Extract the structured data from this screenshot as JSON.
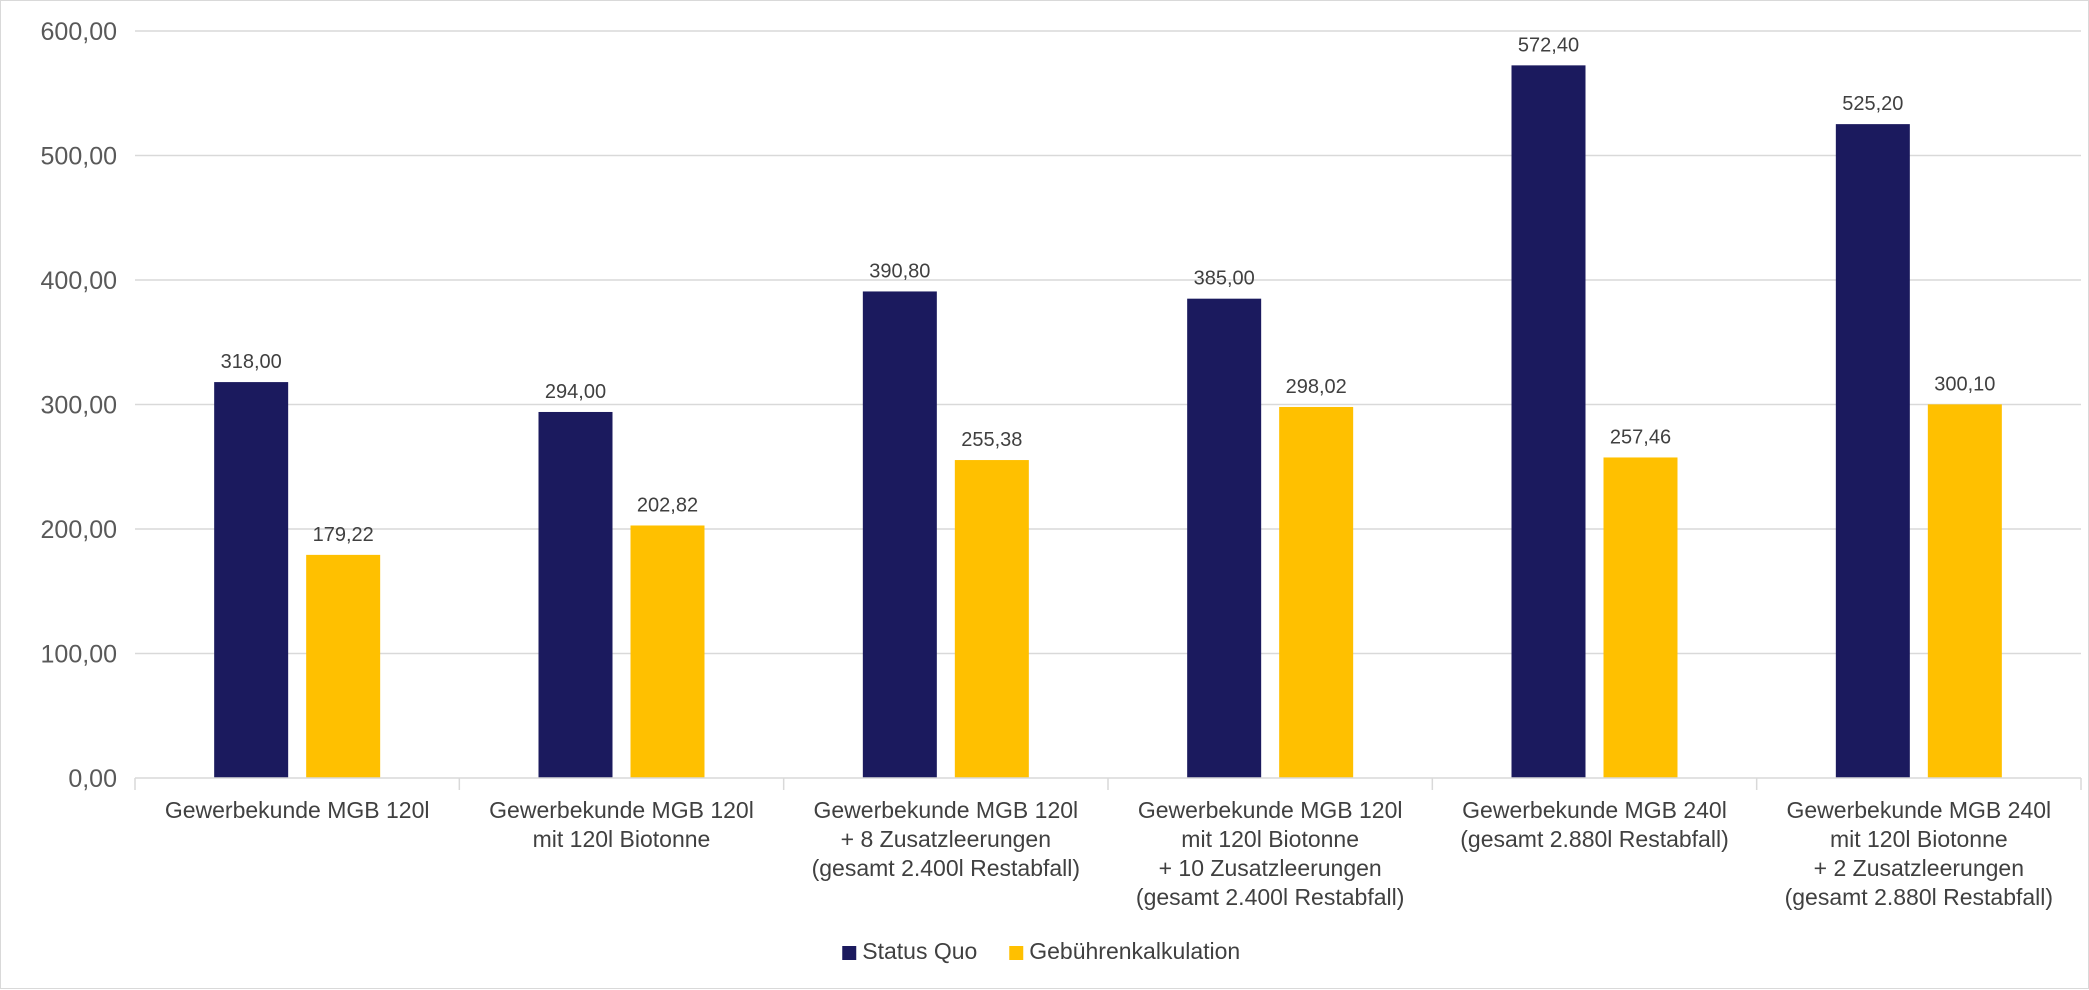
{
  "chart_data": {
    "type": "bar",
    "title": "",
    "xlabel": "",
    "ylabel": "",
    "ylim": [
      0,
      600
    ],
    "yticks": [
      "0,00",
      "100,00",
      "200,00",
      "300,00",
      "400,00",
      "500,00",
      "600,00"
    ],
    "grid": true,
    "legend_position": "bottom",
    "categories": [
      [
        "Gewerbekunde MGB 120l"
      ],
      [
        "Gewerbekunde MGB 120l",
        "mit 120l Biotonne"
      ],
      [
        "Gewerbekunde MGB 120l",
        "+ 8 Zusatzleerungen",
        "(gesamt 2.400l Restabfall)"
      ],
      [
        "Gewerbekunde MGB 120l",
        "mit 120l Biotonne",
        "+ 10 Zusatzleerungen",
        "(gesamt 2.400l Restabfall)"
      ],
      [
        "Gewerbekunde MGB 240l",
        "(gesamt 2.880l Restabfall)"
      ],
      [
        "Gewerbekunde MGB 240l",
        "mit 120l Biotonne",
        "+ 2 Zusatzleerungen",
        "(gesamt 2.880l Restabfall)"
      ]
    ],
    "series": [
      {
        "name": "Status Quo",
        "color": "#1b1a5e",
        "values": [
          318.0,
          294.0,
          390.8,
          385.0,
          572.4,
          525.2
        ],
        "labels": [
          "318,00",
          "294,00",
          "390,80",
          "385,00",
          "572,40",
          "525,20"
        ]
      },
      {
        "name": "Gebührenkalkulation",
        "color": "#ffc000",
        "values": [
          179.22,
          202.82,
          255.38,
          298.02,
          257.46,
          300.1
        ],
        "labels": [
          "179,22",
          "202,82",
          "255,38",
          "298,02",
          "257,46",
          "300,10"
        ]
      }
    ]
  }
}
